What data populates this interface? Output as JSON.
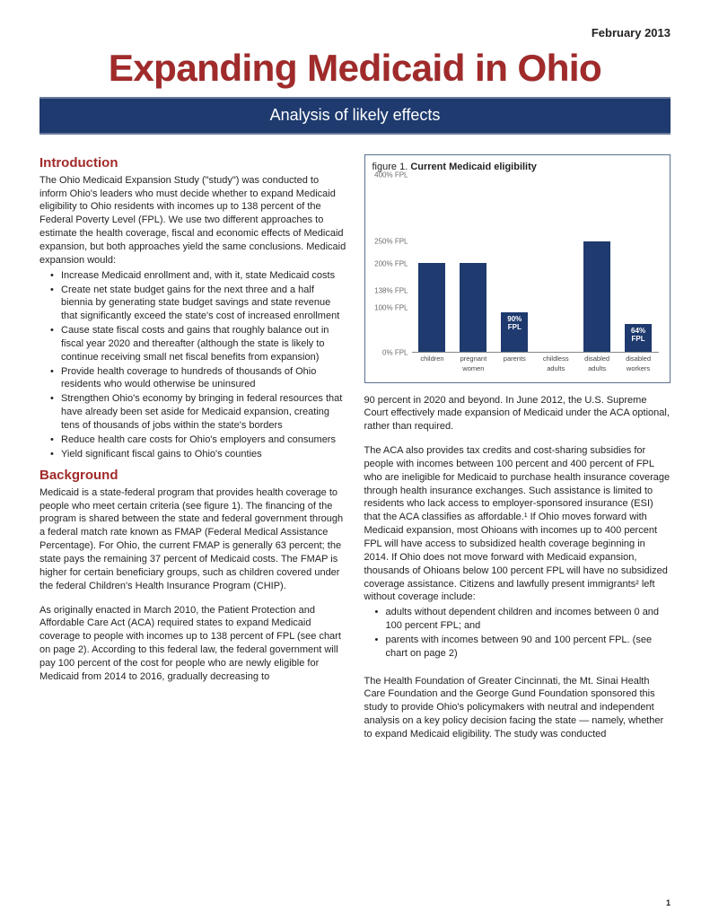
{
  "date": "February  2013",
  "title": "Expanding Medicaid in Ohio",
  "subtitle": "Analysis of likely effects",
  "intro_heading": "Introduction",
  "intro_p1": "The Ohio Medicaid Expansion Study (\"study\") was conducted to inform Ohio's leaders who must decide whether to expand Medicaid eligibility to Ohio residents with incomes up to 138 percent of the Federal Poverty Level (FPL). We use two different approaches to estimate the health coverage, fiscal and economic effects of Medicaid expansion, but both approaches yield the same conclusions. Medicaid expansion would:",
  "intro_bullets": [
    "Increase Medicaid enrollment and, with it, state Medicaid costs",
    "Create net state budget gains for the next three and a half biennia by generating state budget savings and state revenue that significantly exceed the state's cost of increased enrollment",
    "Cause state fiscal costs and gains that roughly balance out in fiscal year 2020 and thereafter (although the state is likely to continue receiving small net fiscal benefits from expansion)",
    "Provide health coverage to hundreds of thousands of Ohio residents who would otherwise be uninsured",
    "Strengthen Ohio's economy by bringing in federal resources that have already been set aside for Medicaid expansion, creating tens of thousands of jobs within the state's borders",
    "Reduce health care costs for Ohio's employers and consumers",
    "Yield significant fiscal gains to Ohio's counties"
  ],
  "bg_heading": "Background",
  "bg_p1": "Medicaid is a state-federal program that provides health coverage to people who meet certain criteria (see figure 1).  The financing of the program is shared between the state and federal government through a federal match rate known as FMAP (Federal Medical Assistance Percentage).  For Ohio, the current FMAP is generally 63 percent; the state pays the remaining 37 percent of Medicaid costs.  The FMAP is higher for certain beneficiary groups, such as children covered under the federal Children's Health Insurance Program (CHIP).",
  "bg_p2": "As originally enacted in March 2010, the Patient Protection and Affordable Care Act (ACA) required states to expand Medicaid coverage to people with incomes up to 138 percent of FPL (see chart  on page 2).  According to this federal law, the federal government will pay 100 percent of the cost for people who are newly eligible for Medicaid from 2014 to 2016, gradually decreasing to",
  "r_p1": "90 percent in 2020 and beyond.  In June 2012, the U.S. Supreme Court effectively made expansion of Medicaid under the ACA optional, rather than required.",
  "r_p2": "The ACA also provides tax credits and cost-sharing subsidies for people with incomes between 100 percent and 400 percent of FPL who are ineligible for Medicaid to purchase health insurance coverage through health insurance exchanges.  Such assistance is limited to residents who lack access to employer-sponsored insurance (ESI) that the ACA classifies as affordable.¹ If Ohio moves forward with Medicaid expansion, most Ohioans with incomes up to 400 percent FPL will have access to subsidized health coverage beginning in 2014. If Ohio does not move forward with Medicaid expansion, thousands of Ohioans below 100 percent FPL will have no subsidized coverage assistance. Citizens and lawfully present immigrants² left without coverage include:",
  "r_bullets": [
    "adults without dependent children and incomes between 0 and 100 percent FPL; and",
    "parents with incomes between 90 and 100 percent FPL. (see chart on page 2)"
  ],
  "r_p3": "The Health Foundation of Greater Cincinnati, the Mt. Sinai Health Care Foundation and the George Gund Foundation sponsored this study to provide Ohio's policymakers with neutral and independent analysis on a key policy decision facing the state — namely, whether to expand Medicaid eligibility.  The study was conducted",
  "chart": {
    "type": "bar",
    "figure_label": "figure 1.",
    "title": "Current Medicaid eligibility",
    "y_max": 400,
    "y_ticks": [
      {
        "v": 400,
        "label": "400% FPL"
      },
      {
        "v": 250,
        "label": "250% FPL"
      },
      {
        "v": 200,
        "label": "200% FPL"
      },
      {
        "v": 138,
        "label": "138% FPL"
      },
      {
        "v": 100,
        "label": "100% FPL"
      },
      {
        "v": 0,
        "label": "0% FPL"
      }
    ],
    "bars": [
      {
        "label": "children",
        "value": 200,
        "inner": ""
      },
      {
        "label": "pregnant\nwomen",
        "value": 200,
        "inner": ""
      },
      {
        "label": "parents",
        "value": 90,
        "inner": "90%\nFPL"
      },
      {
        "label": "childless\nadults",
        "value": 0,
        "inner": ""
      },
      {
        "label": "disabled\nadults",
        "value": 250,
        "inner": ""
      },
      {
        "label": "disabled\nworkers",
        "value": 64,
        "inner": "64%\nFPL"
      }
    ],
    "bar_color": "#1e3a6e",
    "grid_color": "#d0d0d0",
    "label_color": "#6b6b6b",
    "background": "#ffffff"
  },
  "page_number": "1"
}
